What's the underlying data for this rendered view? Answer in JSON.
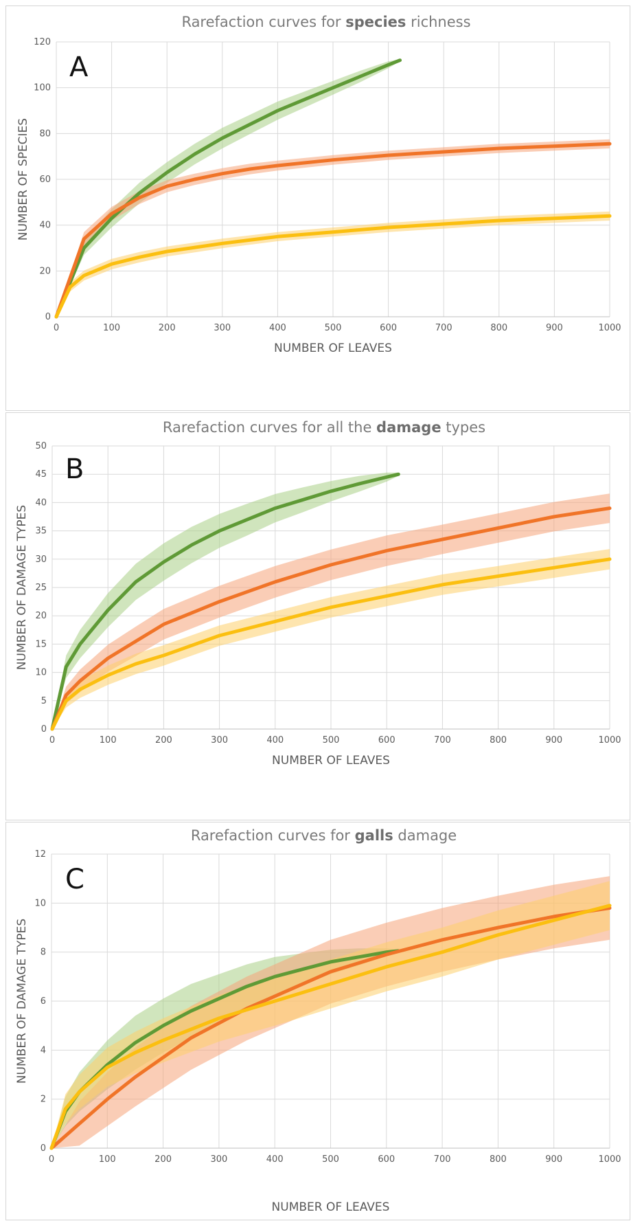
{
  "colors": {
    "green": "#5f9a36",
    "orange": "#f07428",
    "yellow": "#fbbf10",
    "green_band": "#a9cf86",
    "orange_band": "#f6a47a",
    "yellow_band": "#fdd06b"
  },
  "chart_data": [
    {
      "type": "line",
      "panel_label": "A",
      "title_pre": "Rarefaction curves for ",
      "title_bold": "species",
      "title_post": " richness",
      "xlabel": "NUMBER OF LEAVES",
      "ylabel": "NUMBER OF SPECIES",
      "xlim": [
        0,
        1000
      ],
      "ylim": [
        0,
        120
      ],
      "xticks": [
        0,
        100,
        200,
        300,
        400,
        500,
        600,
        700,
        800,
        900,
        1000
      ],
      "yticks": [
        0,
        20,
        40,
        60,
        80,
        100,
        120
      ],
      "grid": true,
      "series": [
        {
          "color": "green",
          "band_color": "green_band",
          "x": [
            0,
            50,
            100,
            150,
            200,
            250,
            300,
            350,
            400,
            450,
            500,
            550,
            600,
            621
          ],
          "y": [
            0,
            30,
            43,
            54,
            63,
            71,
            78,
            84,
            90,
            95,
            100,
            105,
            110,
            112
          ],
          "band": [
            0,
            3,
            4,
            4.5,
            4.5,
            4.5,
            4.5,
            4.2,
            4,
            3.5,
            3,
            2.5,
            1.5,
            0.5
          ]
        },
        {
          "color": "orange",
          "band_color": "orange_band",
          "x": [
            0,
            50,
            100,
            150,
            200,
            250,
            300,
            350,
            400,
            500,
            600,
            700,
            800,
            900,
            1000
          ],
          "y": [
            0,
            34,
            45,
            52,
            57,
            60,
            62.5,
            64.5,
            66,
            68.5,
            70.5,
            72,
            73.5,
            74.5,
            75.5
          ],
          "band": [
            0,
            3,
            3,
            2.8,
            2.6,
            2.5,
            2.4,
            2.3,
            2.2,
            2.1,
            2,
            2,
            2,
            2,
            2
          ]
        },
        {
          "color": "yellow",
          "band_color": "yellow_band",
          "x": [
            0,
            25,
            50,
            100,
            150,
            200,
            300,
            400,
            500,
            600,
            700,
            800,
            900,
            1000
          ],
          "y": [
            0,
            13,
            18,
            23,
            26,
            28.5,
            32,
            35,
            37,
            39,
            40.5,
            42,
            43,
            44
          ],
          "band": [
            0,
            2,
            2.2,
            2.3,
            2.3,
            2.2,
            2.1,
            2,
            2,
            2,
            2,
            2,
            2,
            2
          ]
        }
      ]
    },
    {
      "type": "line",
      "panel_label": "B",
      "title_pre": "Rarefaction curves for all the ",
      "title_bold": "damage",
      "title_post": " types",
      "xlabel": "NUMBER OF LEAVES",
      "ylabel": "NUMBER OF DAMAGE TYPES",
      "xlim": [
        0,
        1000
      ],
      "ylim": [
        0,
        50
      ],
      "xticks": [
        0,
        100,
        200,
        300,
        400,
        500,
        600,
        700,
        800,
        900,
        1000
      ],
      "yticks": [
        0,
        5,
        10,
        15,
        20,
        25,
        30,
        35,
        40,
        45,
        50
      ],
      "grid": true,
      "series": [
        {
          "color": "green",
          "band_color": "green_band",
          "x": [
            0,
            25,
            50,
            100,
            150,
            200,
            250,
            300,
            350,
            400,
            450,
            500,
            550,
            600,
            621
          ],
          "y": [
            0,
            11,
            15,
            21,
            26,
            29.5,
            32.5,
            35,
            37,
            39,
            40.5,
            42,
            43.3,
            44.5,
            45
          ],
          "band": [
            0,
            2,
            2.5,
            3,
            3.2,
            3.3,
            3.2,
            3,
            2.8,
            2.5,
            2.2,
            1.8,
            1.4,
            0.8,
            0.3
          ]
        },
        {
          "color": "orange",
          "band_color": "orange_band",
          "x": [
            0,
            25,
            50,
            100,
            150,
            200,
            300,
            400,
            500,
            600,
            700,
            800,
            900,
            1000
          ],
          "y": [
            0,
            6,
            8.5,
            12.5,
            15.5,
            18.5,
            22.5,
            26,
            29,
            31.5,
            33.5,
            35.5,
            37.5,
            39
          ],
          "band": [
            0,
            1.5,
            2,
            2.4,
            2.6,
            2.7,
            2.8,
            2.8,
            2.7,
            2.7,
            2.6,
            2.6,
            2.6,
            2.6
          ]
        },
        {
          "color": "yellow",
          "band_color": "yellow_band",
          "x": [
            0,
            25,
            50,
            100,
            150,
            200,
            300,
            400,
            500,
            600,
            700,
            800,
            900,
            1000
          ],
          "y": [
            0,
            5,
            7,
            9.5,
            11.5,
            13,
            16.5,
            19,
            21.5,
            23.5,
            25.5,
            27,
            28.5,
            30
          ],
          "band": [
            0,
            1.2,
            1.5,
            1.7,
            1.8,
            1.8,
            1.8,
            1.8,
            1.8,
            1.8,
            1.8,
            1.8,
            1.8,
            1.8
          ]
        }
      ]
    },
    {
      "type": "line",
      "panel_label": "C",
      "title_pre": "Rarefaction curves for ",
      "title_bold": "galls",
      "title_post": " damage",
      "xlabel": "NUMBER OF LEAVES",
      "ylabel": "NUMBER OF DAMAGE TYPES",
      "xlim": [
        0,
        1000
      ],
      "ylim": [
        0,
        12
      ],
      "xticks": [
        0,
        100,
        200,
        300,
        400,
        500,
        600,
        700,
        800,
        900,
        1000
      ],
      "yticks": [
        0,
        2,
        4,
        6,
        8,
        10,
        12
      ],
      "grid": true,
      "series": [
        {
          "color": "green",
          "band_color": "green_band",
          "x": [
            0,
            25,
            50,
            100,
            150,
            200,
            250,
            300,
            350,
            400,
            450,
            500,
            550,
            600,
            621
          ],
          "y": [
            0,
            1.5,
            2.3,
            3.4,
            4.3,
            5,
            5.6,
            6.1,
            6.6,
            7,
            7.3,
            7.6,
            7.8,
            8,
            8.05
          ],
          "band": [
            0,
            0.6,
            0.8,
            1,
            1.1,
            1.1,
            1.1,
            1,
            0.9,
            0.8,
            0.65,
            0.5,
            0.35,
            0.15,
            0.05
          ]
        },
        {
          "color": "orange",
          "band_color": "orange_band",
          "x": [
            0,
            50,
            100,
            150,
            200,
            250,
            300,
            350,
            400,
            500,
            600,
            700,
            800,
            900,
            1000
          ],
          "y": [
            0,
            1,
            2,
            2.9,
            3.7,
            4.5,
            5.1,
            5.7,
            6.2,
            7.2,
            7.9,
            8.5,
            9,
            9.45,
            9.8
          ],
          "band": [
            0,
            0.9,
            1.1,
            1.2,
            1.25,
            1.3,
            1.3,
            1.3,
            1.3,
            1.3,
            1.3,
            1.3,
            1.3,
            1.3,
            1.3
          ]
        },
        {
          "color": "yellow",
          "band_color": "yellow_band",
          "x": [
            0,
            25,
            50,
            100,
            150,
            200,
            300,
            400,
            500,
            600,
            700,
            800,
            900,
            1000
          ],
          "y": [
            0,
            1.6,
            2.3,
            3.3,
            3.9,
            4.4,
            5.3,
            6,
            6.7,
            7.4,
            8,
            8.7,
            9.3,
            9.9
          ],
          "band": [
            0,
            0.6,
            0.7,
            0.8,
            0.85,
            0.9,
            0.95,
            1,
            1,
            1,
            1,
            1,
            1,
            1
          ]
        }
      ]
    }
  ]
}
